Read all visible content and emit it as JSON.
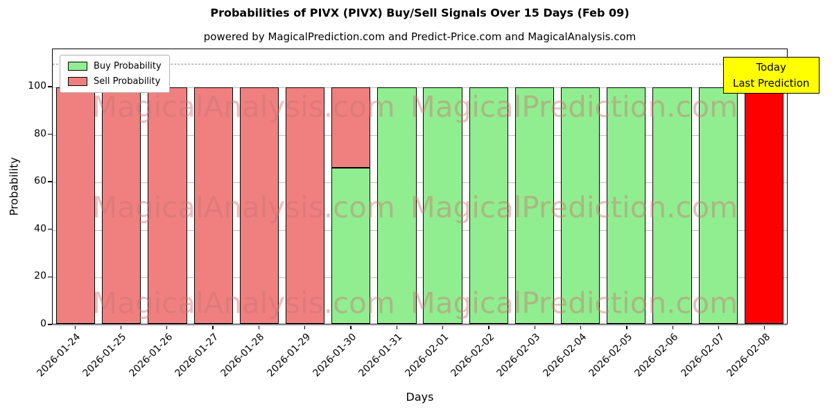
{
  "chart_data": {
    "type": "bar",
    "stacked": true,
    "title": "Probabilities of PIVX (PIVX) Buy/Sell Signals Over 15 Days (Feb 09)",
    "subtitle": "powered by MagicalPrediction.com and Predict-Price.com and MagicalAnalysis.com",
    "xlabel": "Days",
    "ylabel": "Probability",
    "ylim": [
      0,
      116
    ],
    "yticks": [
      0,
      20,
      40,
      60,
      80,
      100
    ],
    "dashed_gridline_y": 110,
    "grid": true,
    "legend_position": "upper left",
    "bar_edge_color": "#000000",
    "categories": [
      "2026-01-24",
      "2026-01-25",
      "2026-01-26",
      "2026-01-27",
      "2026-01-28",
      "2026-01-29",
      "2026-01-30",
      "2026-01-31",
      "2026-02-01",
      "2026-02-02",
      "2026-02-03",
      "2026-02-04",
      "2026-02-05",
      "2026-02-06",
      "2026-02-07",
      "2026-02-08"
    ],
    "series": [
      {
        "name": "Buy Probability",
        "color": "#90EE90",
        "in_legend": true,
        "values": [
          0,
          0,
          0,
          0,
          0,
          0,
          66,
          100,
          100,
          100,
          100,
          100,
          100,
          100,
          100,
          0
        ]
      },
      {
        "name": "Sell Probability",
        "color": "#F08080",
        "in_legend": true,
        "values": [
          100,
          100,
          100,
          100,
          100,
          100,
          34,
          0,
          0,
          0,
          0,
          0,
          0,
          0,
          0,
          0
        ]
      },
      {
        "name": "Today Prediction",
        "color": "#FF0000",
        "in_legend": false,
        "values": [
          0,
          0,
          0,
          0,
          0,
          0,
          0,
          0,
          0,
          0,
          0,
          0,
          0,
          0,
          0,
          100
        ]
      }
    ],
    "annotation": {
      "lines": [
        "Today",
        "Last Prediction"
      ],
      "bg_color": "#FFFF00"
    },
    "watermarks": [
      "MagicalAnalysis.com",
      "MagicalPrediction.com"
    ]
  }
}
